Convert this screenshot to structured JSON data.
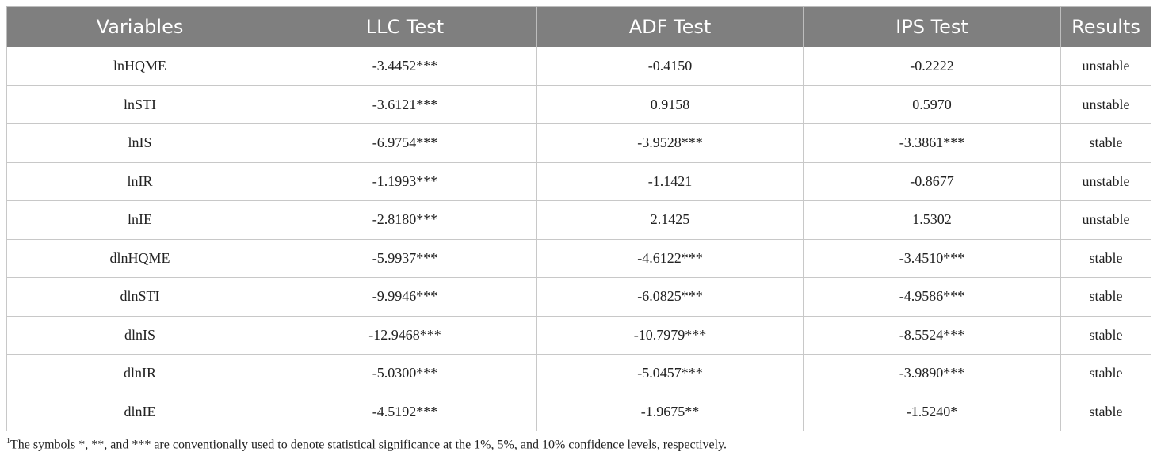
{
  "table": {
    "header": [
      "Variables",
      "LLC Test",
      "ADF Test",
      "IPS Test",
      "Results"
    ],
    "rows": [
      [
        "lnHQME",
        "-3.4452***",
        "-0.4150",
        "-0.2222",
        "unstable"
      ],
      [
        "lnSTI",
        "-3.6121***",
        "0.9158",
        "0.5970",
        "unstable"
      ],
      [
        "lnIS",
        "-6.9754***",
        "-3.9528***",
        "-3.3861***",
        "stable"
      ],
      [
        "lnIR",
        "-1.1993***",
        "-1.1421",
        "-0.8677",
        "unstable"
      ],
      [
        "lnIE",
        "-2.8180***",
        "2.1425",
        "1.5302",
        "unstable"
      ],
      [
        "dlnHQME",
        "-5.9937***",
        "-4.6122***",
        "-3.4510***",
        "stable"
      ],
      [
        "dlnSTI",
        "-9.9946***",
        "-6.0825***",
        "-4.9586***",
        "stable"
      ],
      [
        "dlnIS",
        "-12.9468***",
        "-10.7979***",
        "-8.5524***",
        "stable"
      ],
      [
        "dlnIR",
        "-5.0300***",
        "-5.0457***",
        "-3.9890***",
        "stable"
      ],
      [
        "dlnIE",
        "-4.5192***",
        "-1.9675**",
        "-1.5240*",
        "stable"
      ]
    ]
  },
  "footnote": {
    "marker": "1",
    "text": "The symbols *, **, and *** are conventionally used to denote statistical significance at the 1%, 5%, and 10% confidence levels, respectively."
  }
}
